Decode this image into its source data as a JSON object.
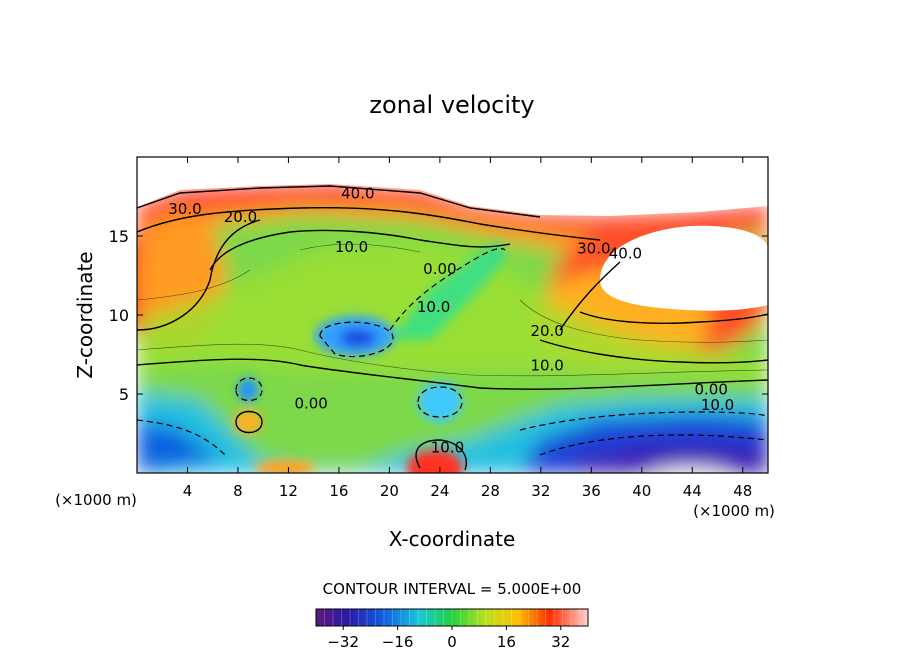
{
  "chart_data": {
    "type": "heatmap",
    "subtype": "filled-contour",
    "title": "zonal velocity",
    "xlabel": "X-coordinate",
    "ylabel": "Z-coordinate",
    "x_unit_left": "(×1000 m)",
    "x_unit_right": "(×1000 m)",
    "xlim": [
      0,
      50
    ],
    "ylim": [
      0,
      20
    ],
    "x_ticks": [
      4,
      8,
      12,
      16,
      20,
      24,
      28,
      32,
      36,
      40,
      44,
      48
    ],
    "y_ticks": [
      5,
      10,
      15
    ],
    "contour_interval_text": "CONTOUR INTERVAL = 5.000E+00",
    "colorbar": {
      "min": -40,
      "max": 40,
      "ticks": [
        -32,
        -16,
        0,
        16,
        32
      ],
      "tick_labels": [
        "−32",
        "−16",
        "0",
        "16",
        "32"
      ]
    },
    "contour_labels": [
      {
        "text": "40.0",
        "x": 17.5,
        "z": 17.7
      },
      {
        "text": "30.0",
        "x": 3.8,
        "z": 16.7
      },
      {
        "text": "20.0",
        "x": 8.2,
        "z": 16.2
      },
      {
        "text": "10.0",
        "x": 17.0,
        "z": 14.3
      },
      {
        "text": "0.00",
        "x": 24.0,
        "z": 12.9
      },
      {
        "text": "10.0",
        "x": 23.5,
        "z": 10.5
      },
      {
        "text": "30.0",
        "x": 36.2,
        "z": 14.2
      },
      {
        "text": "40.0",
        "x": 38.7,
        "z": 13.9
      },
      {
        "text": "20.0",
        "x": 32.5,
        "z": 9.0
      },
      {
        "text": "10.0",
        "x": 32.5,
        "z": 6.8
      },
      {
        "text": "0.00",
        "x": 45.5,
        "z": 5.3
      },
      {
        "text": "0.00",
        "x": 13.8,
        "z": 4.4
      },
      {
        "text": "10.0",
        "x": 46.0,
        "z": 4.3
      },
      {
        "text": "10.0",
        "x": 24.6,
        "z": 1.6
      }
    ]
  }
}
